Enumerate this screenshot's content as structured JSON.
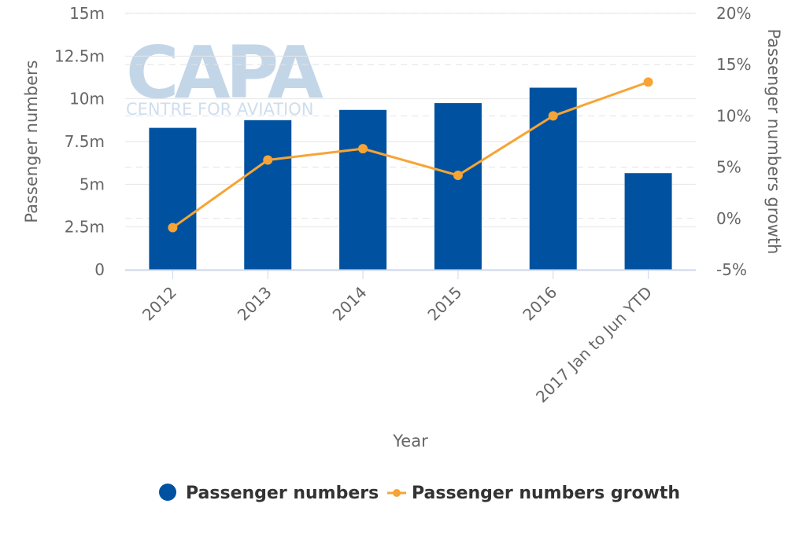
{
  "watermark": {
    "brand": "CAPA",
    "tagline": "CENTRE FOR AVIATION"
  },
  "chart_data": {
    "type": "bar",
    "categories": [
      "2012",
      "2013",
      "2014",
      "2015",
      "2016",
      "2017 Jan to Jun YTD"
    ],
    "xlabel": "Year",
    "ylabel": "Passenger numbers",
    "y2label": "Passenger numbers growth",
    "ylim": [
      0,
      15
    ],
    "y2lim": [
      -5,
      20
    ],
    "yticks": [
      "0",
      "2.5m",
      "5m",
      "7.5m",
      "10m",
      "12.5m",
      "15m"
    ],
    "y2ticks": [
      "-5%",
      "0%",
      "5%",
      "10%",
      "15%",
      "20%"
    ],
    "grid": true,
    "legend_position": "bottom-center",
    "series": [
      {
        "name": "Passenger numbers",
        "type": "bar",
        "axis": "left",
        "unit": "m",
        "color": "#0052a1",
        "values": [
          8.3,
          8.75,
          9.35,
          9.75,
          10.65,
          5.65
        ]
      },
      {
        "name": "Passenger numbers growth",
        "type": "line",
        "axis": "right",
        "unit": "%",
        "color": "#f7a435",
        "values": [
          -0.9,
          5.7,
          6.8,
          4.2,
          10.0,
          13.3
        ]
      }
    ]
  }
}
